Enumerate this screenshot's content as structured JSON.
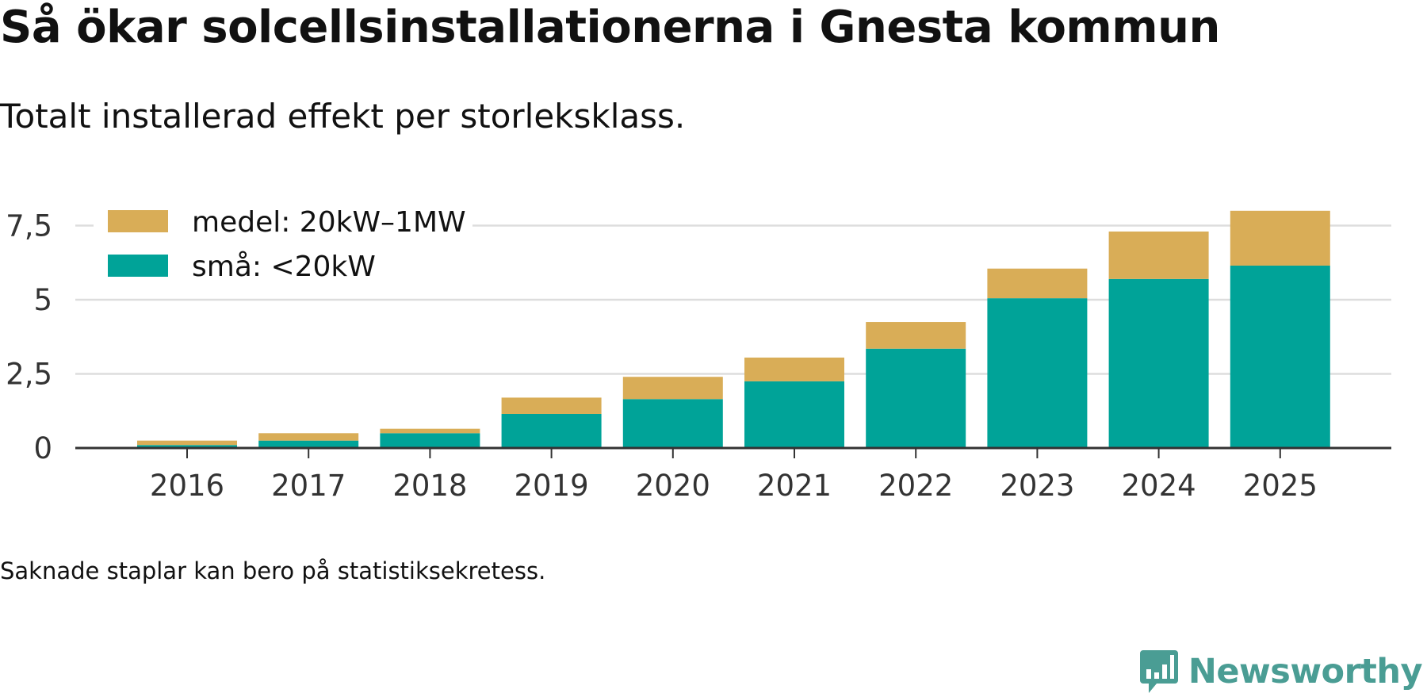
{
  "header": {
    "title": "Så ökar solcellsinstallationerna i Gnesta kommun",
    "subtitle": "Totalt installerad effekt per storleksklass."
  },
  "chart_data": {
    "type": "bar",
    "stacked": true,
    "categories": [
      "2016",
      "2017",
      "2018",
      "2019",
      "2020",
      "2021",
      "2022",
      "2023",
      "2024",
      "2025"
    ],
    "series": [
      {
        "name": "små: <20kW",
        "color": "#00a398",
        "values": [
          0.1,
          0.25,
          0.5,
          1.15,
          1.65,
          2.25,
          3.35,
          5.05,
          5.7,
          6.15
        ]
      },
      {
        "name": "medel: 20kW–1MW",
        "color": "#d9ad57",
        "values": [
          0.15,
          0.25,
          0.15,
          0.55,
          0.75,
          0.8,
          0.9,
          1.0,
          1.6,
          1.85
        ]
      }
    ],
    "legend": [
      "medel: 20kW–1MW",
      "små: <20kW"
    ],
    "legend_position": "top-left",
    "yticks": [
      0,
      2.5,
      5,
      7.5
    ],
    "ytick_labels": [
      "0",
      "2,5",
      "5",
      "7,5"
    ],
    "ylim": [
      0,
      8.3
    ],
    "xlabel": "",
    "ylabel": "",
    "grid": true
  },
  "footnote": "Saknade staplar kan bero på statistiksekretess.",
  "brand": {
    "name": "Newsworthy",
    "color": "#4a9d94",
    "icon": "newsworthy-logo-icon"
  },
  "colors": {
    "axis": "#333333",
    "grid": "#dddddd",
    "text": "#111111"
  }
}
